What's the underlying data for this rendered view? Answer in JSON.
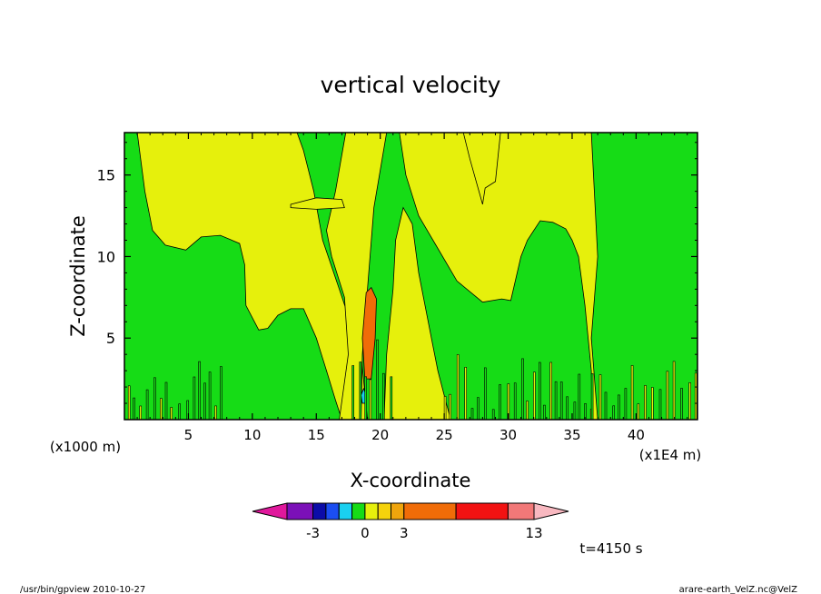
{
  "chart_data": {
    "type": "heatmap",
    "title": "vertical velocity",
    "xlabel": "X-coordinate",
    "ylabel": "Z-coordinate",
    "x_unit_left": "(x1000 m)",
    "x_unit_right": "(x1E4 m)",
    "xlim": [
      0,
      44.8
    ],
    "ylim": [
      0,
      17.6
    ],
    "x_ticks": [
      5,
      10,
      15,
      20,
      25,
      30,
      35,
      40
    ],
    "x_tick_labels": [
      "5",
      "10",
      "15",
      "20",
      "25",
      "30",
      "35",
      "40"
    ],
    "y_ticks": [
      5,
      10,
      15
    ],
    "y_tick_labels": [
      "5",
      "10",
      "15"
    ],
    "colorbar": {
      "colors": [
        "#e0189c",
        "#7b10b8",
        "#0c0ca8",
        "#1b4ef2",
        "#1ad0f0",
        "#16dc16",
        "#e6f00c",
        "#f5d20c",
        "#f0a50c",
        "#f06c08",
        "#f21212",
        "#f27878",
        "#f8b8c0"
      ],
      "widths": [
        1,
        1,
        0.5,
        0.5,
        0.5,
        0.5,
        0.5,
        0.5,
        0.5,
        2,
        2,
        1,
        1
      ],
      "tick_labels": [
        "-3",
        "0",
        "3",
        "13"
      ],
      "tick_values": [
        -3,
        0,
        3,
        13
      ]
    },
    "time_label": "t=4150 s",
    "background_color": "#16dc16",
    "regions": [
      {
        "value": "positive",
        "color": "#e6f00c",
        "polygon": [
          [
            1,
            17.6
          ],
          [
            1.6,
            14
          ],
          [
            2.2,
            11.6
          ],
          [
            3.2,
            10.7
          ],
          [
            4.8,
            10.4
          ],
          [
            6,
            11.2
          ],
          [
            7.5,
            11.3
          ],
          [
            9,
            10.8
          ],
          [
            9.4,
            9.5
          ],
          [
            9.5,
            7
          ],
          [
            10.5,
            5.5
          ],
          [
            11.2,
            5.6
          ],
          [
            12,
            6.4
          ],
          [
            13,
            6.8
          ],
          [
            14,
            6.8
          ],
          [
            15,
            5
          ],
          [
            15.8,
            3
          ],
          [
            16.5,
            1.2
          ],
          [
            17,
            0
          ],
          [
            19,
            0
          ],
          [
            18.5,
            4
          ],
          [
            16.8,
            8
          ],
          [
            15.5,
            11
          ],
          [
            14.8,
            14
          ],
          [
            14,
            16.5
          ],
          [
            13.5,
            17.6
          ]
        ]
      },
      {
        "value": "positive",
        "color": "#e6f00c",
        "polygon": [
          [
            16.8,
            0
          ],
          [
            17.5,
            4
          ],
          [
            17.2,
            7.5
          ],
          [
            16.2,
            10
          ],
          [
            15.8,
            11.6
          ],
          [
            16.5,
            14
          ],
          [
            17.3,
            17.6
          ],
          [
            20.5,
            17.6
          ],
          [
            19.5,
            13
          ],
          [
            19,
            8
          ],
          [
            18.6,
            4
          ],
          [
            18.5,
            0
          ]
        ]
      },
      {
        "value": "positive",
        "color": "#e6f00c",
        "polygon": [
          [
            13,
            13.2
          ],
          [
            15,
            13.6
          ],
          [
            17,
            13.5
          ],
          [
            17.2,
            13.0
          ],
          [
            15,
            12.9
          ],
          [
            13,
            13.0
          ]
        ]
      },
      {
        "value": "positive",
        "color": "#e6f00c",
        "polygon": [
          [
            20.3,
            0
          ],
          [
            20.5,
            4
          ],
          [
            21,
            8
          ],
          [
            21.2,
            11
          ],
          [
            21.8,
            13
          ],
          [
            22.5,
            12
          ],
          [
            23,
            9
          ],
          [
            23.5,
            7
          ],
          [
            24,
            5
          ],
          [
            24.5,
            3
          ],
          [
            25,
            1.5
          ],
          [
            25.5,
            0
          ]
        ]
      },
      {
        "value": "positive",
        "color": "#e6f00c",
        "polygon": [
          [
            21.5,
            17.6
          ],
          [
            22,
            15
          ],
          [
            23,
            12.5
          ],
          [
            24.5,
            10.5
          ],
          [
            26,
            8.5
          ],
          [
            28,
            7.2
          ],
          [
            29.5,
            7.4
          ],
          [
            30.2,
            7.3
          ],
          [
            31,
            10
          ],
          [
            31.5,
            11
          ],
          [
            32.5,
            12.2
          ],
          [
            33.5,
            12.1
          ],
          [
            34.5,
            11.7
          ],
          [
            35,
            11
          ],
          [
            35.5,
            10
          ],
          [
            36,
            7
          ],
          [
            36.5,
            3
          ],
          [
            36.6,
            0
          ],
          [
            37,
            0
          ],
          [
            36.5,
            5
          ],
          [
            37,
            10
          ],
          [
            36.5,
            17.6
          ]
        ]
      },
      {
        "value": "positive",
        "color": "#e6f00c",
        "polygon": [
          [
            26.5,
            17.6
          ],
          [
            27,
            16
          ],
          [
            28,
            13.2
          ],
          [
            28.2,
            14.2
          ],
          [
            29,
            14.6
          ],
          [
            29.4,
            17.6
          ]
        ]
      },
      {
        "value": "strong_positive",
        "color": "#f06c08",
        "polygon": [
          [
            18.8,
            2.5
          ],
          [
            18.6,
            5
          ],
          [
            18.9,
            7.8
          ],
          [
            19.3,
            8.1
          ],
          [
            19.7,
            7.4
          ],
          [
            19.6,
            5
          ],
          [
            19.3,
            2.5
          ]
        ]
      },
      {
        "value": "negative",
        "color": "#1ad0f0",
        "polygon": [
          [
            18.6,
            1.0
          ],
          [
            18.5,
            1.5
          ],
          [
            18.7,
            1.9
          ],
          [
            18.9,
            1.5
          ],
          [
            18.8,
            1.0
          ]
        ]
      }
    ],
    "footer_left": "/usr/bin/gpview  2010-10-27",
    "footer_right": "arare-earth_VelZ.nc@VelZ"
  }
}
